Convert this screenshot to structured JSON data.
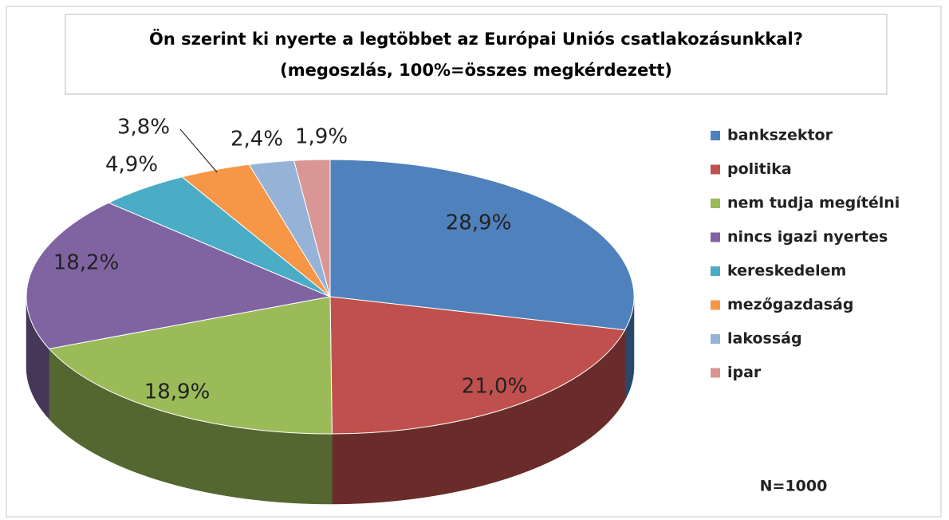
{
  "chart_data": {
    "type": "pie",
    "title": [
      "Ön szerint ki nyerte a legtöbbet az Európai Uniós csatlakozásunkkal?",
      "(megoszlás, 100%=összes megkérdezett)"
    ],
    "categories": [
      "bankszektor",
      "politika",
      "nem tudja megítélni",
      "nincs igazi nyertes",
      "kereskedelem",
      "mezőgazdaság",
      "lakosság",
      "ipar"
    ],
    "values": [
      28.9,
      21.0,
      18.9,
      18.2,
      4.9,
      3.8,
      2.4,
      1.9
    ],
    "value_labels": [
      "28,9%",
      "21,0%",
      "18,9%",
      "18,2%",
      "4,9%",
      "3,8%",
      "2,4%",
      "1,9%"
    ],
    "colors": [
      "#4f81bd",
      "#c0504d",
      "#9bbb59",
      "#8064a2",
      "#4bacc6",
      "#f79646",
      "#95b3d7",
      "#d99694"
    ],
    "annotation": "N=1000",
    "legend": "right"
  }
}
